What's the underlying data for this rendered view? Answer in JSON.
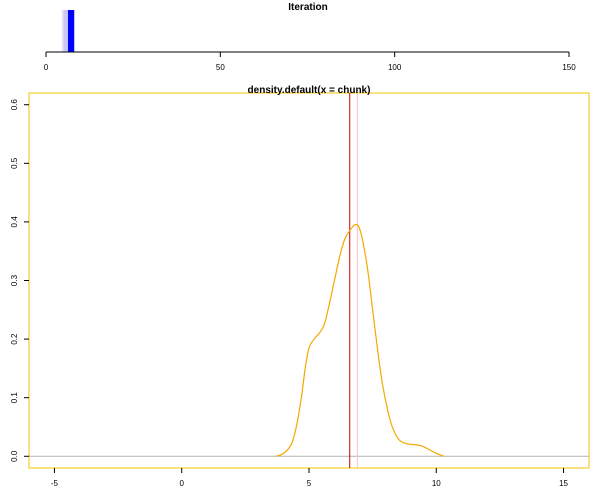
{
  "chart_data": [
    {
      "type": "bar",
      "title": "Iteration",
      "xlim": [
        0,
        150
      ],
      "x_ticks": [
        "0",
        "50",
        "100",
        "150"
      ],
      "x_tick_values": [
        0,
        50,
        100,
        150
      ],
      "bands": [
        {
          "from": 4.5,
          "to": 6.0,
          "color": "#e6e6fa"
        },
        {
          "from": 5.0,
          "to": 6.5,
          "color": "#c9c9f2"
        },
        {
          "from": 6.3,
          "to": 8.1,
          "color": "#0000ff"
        }
      ],
      "grid": false
    },
    {
      "type": "line",
      "title": "density.default(x = chunk)",
      "xlim": [
        -6,
        16
      ],
      "ylim": [
        -0.02,
        0.62
      ],
      "x_ticks": [
        "-5",
        "0",
        "5",
        "10",
        "15"
      ],
      "x_tick_values": [
        -5,
        0,
        5,
        10,
        15
      ],
      "y_ticks": [
        "0.0",
        "0.1",
        "0.2",
        "0.3",
        "0.4",
        "0.5",
        "0.6"
      ],
      "y_tick_values": [
        0,
        0.1,
        0.2,
        0.3,
        0.4,
        0.5,
        0.6
      ],
      "series": [
        {
          "x": [
            3.7,
            4.0,
            4.3,
            4.5,
            4.7,
            4.85,
            5.0,
            5.2,
            5.4,
            5.6,
            5.8,
            6.0,
            6.2,
            6.4,
            6.6,
            6.8,
            6.95,
            7.1,
            7.3,
            7.5,
            7.7,
            7.9,
            8.2,
            8.5,
            8.8,
            9.1,
            9.4,
            9.7,
            10.0,
            10.3
          ],
          "y": [
            0.0,
            0.005,
            0.02,
            0.05,
            0.1,
            0.15,
            0.185,
            0.2,
            0.21,
            0.225,
            0.26,
            0.3,
            0.34,
            0.37,
            0.385,
            0.395,
            0.392,
            0.37,
            0.32,
            0.25,
            0.18,
            0.12,
            0.06,
            0.03,
            0.022,
            0.02,
            0.018,
            0.012,
            0.005,
            0.0
          ],
          "color": "#f5a800"
        }
      ],
      "baseline": {
        "y": 0,
        "color": "#b3b3b3"
      },
      "vlines": [
        {
          "x": 6.6,
          "color": "#cc0000"
        },
        {
          "x": 6.9,
          "color": "#f4c4c4"
        }
      ],
      "frame_color": "#f5c400",
      "grid": false
    }
  ]
}
